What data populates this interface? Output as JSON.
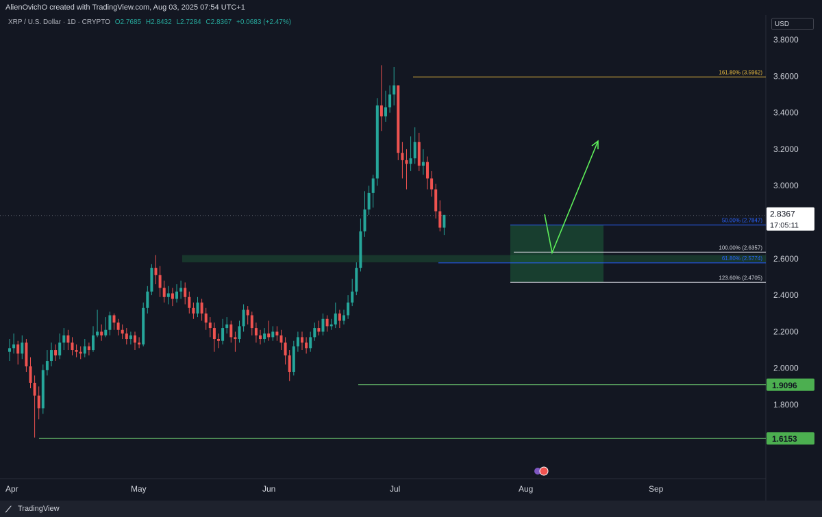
{
  "header": {
    "credit": "AlienOvichO created with TradingView.com, Aug 03, 2025 07:54 UTC+1"
  },
  "symbol_bar": {
    "name": "XRP / U.S. Dollar · 1D · CRYPTO",
    "open": "O2.7685",
    "high": "H2.8432",
    "low": "L2.7284",
    "close": "C2.8367",
    "change": "+0.0683 (+2.47%)"
  },
  "currency_label": "USD",
  "footer": {
    "brand": "TradingView"
  },
  "colors": {
    "background": "#131722",
    "up": "#26a69a",
    "down": "#ef5350",
    "fib_161": "#f0c040",
    "fib_blue": "#2962ff",
    "fib_white": "#d1d4dc",
    "support_green": "#66bb6a",
    "zone_green": "#1e5e3a",
    "arrow_green": "#5ef05a"
  },
  "chart_data": {
    "type": "candlestick",
    "title": "XRP / U.S. Dollar · 1D · CRYPTO",
    "xlabel": "",
    "ylabel": "",
    "x_tick_labels": [
      "Apr",
      "May",
      "Jun",
      "Jul",
      "Aug",
      "Sep"
    ],
    "y_tick_labels": [
      "3.8000",
      "3.6000",
      "3.4000",
      "3.2000",
      "3.0000",
      "2.6000",
      "2.4000",
      "2.2000",
      "2.0000",
      "1.8000"
    ],
    "ylim": [
      1.55,
      3.85
    ],
    "grid": false,
    "last_price": {
      "value": "2.8367",
      "countdown": "17:05:11"
    },
    "fibonacci_levels": [
      {
        "label": "161.80% (3.5962)",
        "value": 3.5962,
        "color": "#f0c040"
      },
      {
        "label": "50.00% (2.7847)",
        "value": 2.7847,
        "color": "#2962ff"
      },
      {
        "label": "100.00% (2.6357)",
        "value": 2.6357,
        "color": "#d1d4dc"
      },
      {
        "label": "61.80% (2.5774)",
        "value": 2.5774,
        "color": "#2962ff"
      },
      {
        "label": "123.60% (2.4705)",
        "value": 2.4705,
        "color": "#d1d4dc"
      }
    ],
    "support_levels": [
      {
        "label": "1.9096",
        "value": 1.9096
      },
      {
        "label": "1.6153",
        "value": 1.6153
      }
    ],
    "demand_zone": {
      "top": 2.62,
      "bottom": 2.58
    },
    "candles": [
      [
        2.09,
        2.11,
        2.16,
        2.04
      ],
      [
        2.11,
        2.13,
        2.19,
        2.08
      ],
      [
        2.13,
        2.08,
        2.15,
        2.02
      ],
      [
        2.08,
        2.14,
        2.18,
        2.05
      ],
      [
        2.14,
        2.01,
        2.16,
        1.98
      ],
      [
        2.01,
        1.92,
        2.06,
        1.89
      ],
      [
        1.92,
        1.85,
        1.96,
        1.62
      ],
      [
        1.85,
        1.78,
        1.9,
        1.72
      ],
      [
        1.78,
        1.99,
        2.02,
        1.75
      ],
      [
        1.99,
        2.04,
        2.1,
        1.96
      ],
      [
        2.04,
        2.1,
        2.14,
        2.01
      ],
      [
        2.1,
        2.07,
        2.13,
        2.04
      ],
      [
        2.07,
        2.14,
        2.19,
        2.05
      ],
      [
        2.14,
        2.18,
        2.22,
        2.1
      ],
      [
        2.18,
        2.14,
        2.21,
        2.1
      ],
      [
        2.14,
        2.1,
        2.17,
        2.07
      ],
      [
        2.1,
        2.09,
        2.13,
        2.06
      ],
      [
        2.09,
        2.08,
        2.12,
        2.05
      ],
      [
        2.08,
        2.12,
        2.16,
        2.06
      ],
      [
        2.12,
        2.1,
        2.14,
        2.07
      ],
      [
        2.1,
        2.18,
        2.23,
        2.09
      ],
      [
        2.18,
        2.2,
        2.32,
        2.17
      ],
      [
        2.2,
        2.18,
        2.24,
        2.15
      ],
      [
        2.18,
        2.21,
        2.28,
        2.17
      ],
      [
        2.21,
        2.29,
        2.31,
        2.18
      ],
      [
        2.29,
        2.25,
        2.3,
        2.21
      ],
      [
        2.25,
        2.21,
        2.27,
        2.18
      ],
      [
        2.21,
        2.19,
        2.24,
        2.16
      ],
      [
        2.19,
        2.16,
        2.22,
        2.13
      ],
      [
        2.16,
        2.18,
        2.2,
        2.13
      ],
      [
        2.18,
        2.14,
        2.2,
        2.1
      ],
      [
        2.14,
        2.13,
        2.17,
        2.11
      ],
      [
        2.13,
        2.33,
        2.36,
        2.12
      ],
      [
        2.33,
        2.42,
        2.45,
        2.3
      ],
      [
        2.42,
        2.55,
        2.57,
        2.4
      ],
      [
        2.55,
        2.51,
        2.62,
        2.46
      ],
      [
        2.51,
        2.44,
        2.56,
        2.39
      ],
      [
        2.44,
        2.39,
        2.48,
        2.36
      ],
      [
        2.39,
        2.41,
        2.45,
        2.35
      ],
      [
        2.41,
        2.38,
        2.44,
        2.34
      ],
      [
        2.38,
        2.42,
        2.46,
        2.36
      ],
      [
        2.42,
        2.44,
        2.48,
        2.38
      ],
      [
        2.44,
        2.39,
        2.47,
        2.35
      ],
      [
        2.39,
        2.33,
        2.42,
        2.3
      ],
      [
        2.33,
        2.3,
        2.36,
        2.27
      ],
      [
        2.3,
        2.36,
        2.39,
        2.28
      ],
      [
        2.36,
        2.3,
        2.38,
        2.26
      ],
      [
        2.3,
        2.25,
        2.33,
        2.21
      ],
      [
        2.25,
        2.22,
        2.28,
        2.17
      ],
      [
        2.22,
        2.16,
        2.25,
        2.09
      ],
      [
        2.16,
        2.15,
        2.19,
        2.11
      ],
      [
        2.15,
        2.22,
        2.27,
        2.13
      ],
      [
        2.22,
        2.24,
        2.28,
        2.19
      ],
      [
        2.24,
        2.17,
        2.26,
        2.14
      ],
      [
        2.17,
        2.16,
        2.2,
        2.09
      ],
      [
        2.16,
        2.23,
        2.26,
        2.14
      ],
      [
        2.23,
        2.32,
        2.35,
        2.2
      ],
      [
        2.32,
        2.29,
        2.34,
        2.24
      ],
      [
        2.29,
        2.22,
        2.31,
        2.18
      ],
      [
        2.22,
        2.18,
        2.25,
        2.14
      ],
      [
        2.18,
        2.16,
        2.21,
        2.13
      ],
      [
        2.16,
        2.19,
        2.22,
        2.14
      ],
      [
        2.19,
        2.17,
        2.26,
        2.15
      ],
      [
        2.17,
        2.2,
        2.23,
        2.15
      ],
      [
        2.2,
        2.18,
        2.23,
        2.15
      ],
      [
        2.18,
        2.14,
        2.21,
        2.1
      ],
      [
        2.14,
        2.07,
        2.17,
        2.02
      ],
      [
        2.07,
        1.98,
        2.1,
        1.93
      ],
      [
        1.98,
        2.12,
        2.15,
        1.96
      ],
      [
        2.12,
        2.17,
        2.2,
        2.09
      ],
      [
        2.17,
        2.14,
        2.2,
        2.1
      ],
      [
        2.14,
        2.11,
        2.17,
        2.08
      ],
      [
        2.11,
        2.17,
        2.2,
        2.09
      ],
      [
        2.17,
        2.22,
        2.25,
        2.15
      ],
      [
        2.22,
        2.2,
        2.26,
        2.18
      ],
      [
        2.2,
        2.27,
        2.3,
        2.18
      ],
      [
        2.27,
        2.23,
        2.29,
        2.2
      ],
      [
        2.23,
        2.24,
        2.27,
        2.21
      ],
      [
        2.24,
        2.3,
        2.36,
        2.22
      ],
      [
        2.3,
        2.26,
        2.32,
        2.22
      ],
      [
        2.26,
        2.29,
        2.32,
        2.24
      ],
      [
        2.29,
        2.36,
        2.4,
        2.27
      ],
      [
        2.36,
        2.42,
        2.49,
        2.34
      ],
      [
        2.42,
        2.55,
        2.58,
        2.4
      ],
      [
        2.55,
        2.75,
        2.82,
        2.53
      ],
      [
        2.75,
        2.87,
        2.97,
        2.72
      ],
      [
        2.87,
        2.96,
        3.0,
        2.84
      ],
      [
        2.96,
        3.04,
        3.06,
        2.88
      ],
      [
        3.04,
        3.44,
        3.48,
        3.0
      ],
      [
        3.44,
        3.38,
        3.66,
        3.3
      ],
      [
        3.38,
        3.43,
        3.52,
        3.35
      ],
      [
        3.43,
        3.5,
        3.55,
        3.4
      ],
      [
        3.5,
        3.55,
        3.65,
        3.44
      ],
      [
        3.55,
        3.18,
        3.55,
        3.14
      ],
      [
        3.18,
        3.14,
        3.24,
        3.04
      ],
      [
        3.14,
        3.12,
        3.2,
        2.98
      ],
      [
        3.12,
        3.15,
        3.27,
        3.08
      ],
      [
        3.15,
        3.24,
        3.32,
        3.12
      ],
      [
        3.24,
        3.11,
        3.29,
        3.08
      ],
      [
        3.11,
        3.13,
        3.2,
        3.06
      ],
      [
        3.13,
        3.04,
        3.16,
        2.98
      ],
      [
        3.04,
        2.98,
        3.08,
        2.94
      ],
      [
        2.98,
        2.86,
        3.01,
        2.82
      ],
      [
        2.86,
        2.77,
        2.92,
        2.75
      ],
      [
        2.77,
        2.84,
        2.84,
        2.73
      ]
    ]
  }
}
